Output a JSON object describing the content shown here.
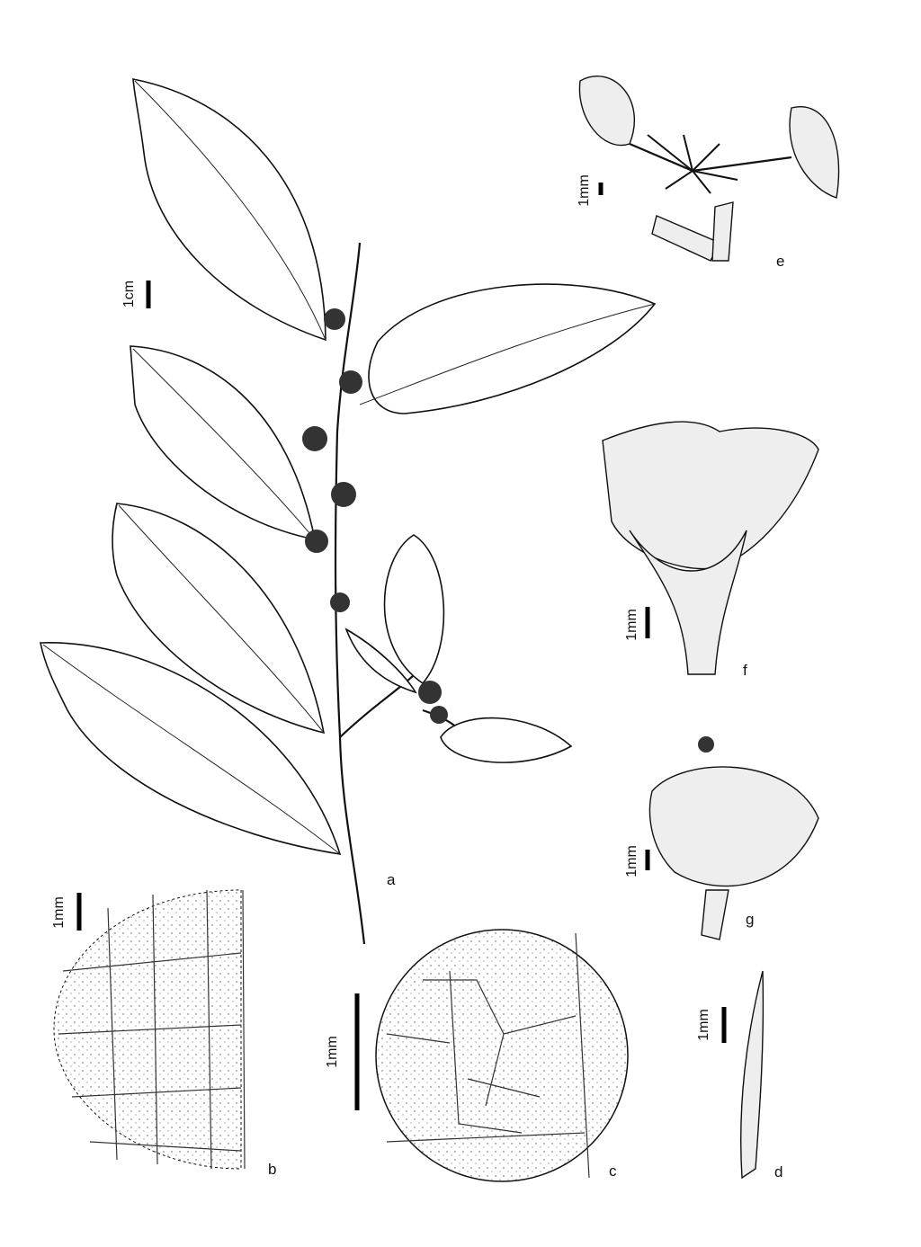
{
  "panels": [
    {
      "label": "a",
      "scale": "1cm"
    },
    {
      "label": "b",
      "scale": "1mm"
    },
    {
      "label": "c",
      "scale": "1mm"
    },
    {
      "label": "d",
      "scale": "1mm"
    },
    {
      "label": "e",
      "scale": "1mm"
    },
    {
      "label": "f",
      "scale": "1mm"
    },
    {
      "label": "g",
      "scale": "1mm"
    }
  ]
}
